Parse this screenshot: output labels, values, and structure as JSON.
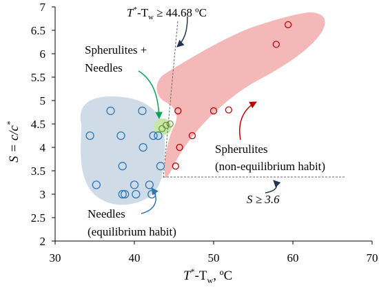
{
  "chart_data": {
    "type": "scatter",
    "xlim": [
      30,
      70
    ],
    "ylim": [
      2,
      7
    ],
    "x_ticks": [
      30,
      40,
      50,
      60,
      70
    ],
    "y_ticks": [
      2,
      2.5,
      3,
      3.5,
      4,
      4.5,
      5,
      5.5,
      6,
      6.5,
      7
    ],
    "x_tick_labels": [
      "30",
      "40",
      "50",
      "60",
      "70"
    ],
    "y_tick_labels": [
      "2",
      "2.5",
      "3",
      "3.5",
      "4",
      "4.5",
      "5",
      "5.5",
      "6",
      "6.5",
      "7"
    ],
    "xlabel": {
      "var": "T",
      "sup": "*",
      "rest": "-T",
      "sub": "w",
      "unit": ", ºC"
    },
    "ylabel": {
      "pre": "S = c/c",
      "sup": "*"
    },
    "grid": false,
    "series": [
      {
        "color": "#2e75b6",
        "x": [
          34.4,
          35.2,
          37.0,
          38.3,
          38.5,
          38.5,
          38.8,
          40.0,
          40.2,
          41.0,
          41.1,
          41.9,
          42.2,
          42.4,
          43.0,
          43.3
        ],
        "y": [
          4.25,
          3.2,
          4.78,
          4.25,
          3.6,
          3.0,
          3.0,
          3.2,
          3.0,
          4.78,
          4.0,
          3.2,
          3.0,
          4.25,
          4.25,
          3.6
        ]
      },
      {
        "color": "#c00000",
        "x": [
          45.2,
          45.5,
          45.7,
          47.3,
          50.0,
          51.9,
          57.9,
          59.4
        ],
        "y": [
          3.6,
          4.78,
          4.0,
          4.25,
          4.78,
          4.8,
          6.2,
          6.62
        ]
      },
      {
        "color": "#6a9a3a",
        "x": [
          43.5,
          44.0,
          44.5
        ],
        "y": [
          4.4,
          4.47,
          4.5
        ]
      }
    ],
    "reference_lines": [
      {
        "label": "T*-Tw ≥ 44.68 ºC",
        "value": 44.68
      },
      {
        "label": "S ≥ 3.6",
        "value": 3.6
      }
    ],
    "annotations": {
      "threshold_t": {
        "var": "T",
        "sup": "*",
        "rest": "-T",
        "sub": "w",
        "tail": " ≥ 44.68 ºC"
      },
      "threshold_s": "S ≥ 3.6",
      "spherulites_needles_line1": "Spherulites +",
      "spherulites_needles_line2": "Needles",
      "spherulites_line1": "Spherulites",
      "spherulites_line2": "(non-equilibrium habit)",
      "needles_line1": "Needles",
      "needles_line2": "(equilibrium habit)"
    }
  },
  "colors": {
    "needles_region": "#cfdce8",
    "spherulites_region": "#f4b8b8",
    "mixed_region": "#c8e6a8",
    "needles_marker": "#2e75b6",
    "spherulites_marker": "#c00000",
    "mixed_marker": "#6a9a3a",
    "arrow_green": "#00a651",
    "arrow_red": "#c00000",
    "arrow_blue": "#2e75b6",
    "arrow_black": "#1f4e79"
  }
}
